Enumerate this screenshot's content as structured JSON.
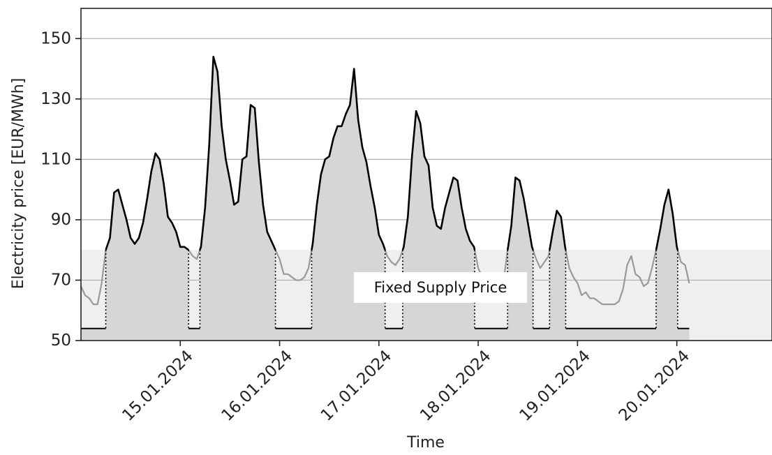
{
  "chart_data": {
    "type": "area",
    "title": "",
    "xlabel": "Time",
    "ylabel": "Electricity price [EUR/MWh]",
    "ylim": [
      50,
      160
    ],
    "yticks": [
      50,
      70,
      90,
      110,
      130,
      150
    ],
    "ytick_labels": [
      "50",
      "70",
      "90",
      "110",
      "130",
      "150"
    ],
    "xlim": [
      "2024-01-14 00:00",
      "2024-01-20 23:00"
    ],
    "xticks": [
      "2024-01-15",
      "2024-01-16",
      "2024-01-17",
      "2024-01-18",
      "2024-01-19",
      "2024-01-20"
    ],
    "xtick_labels": [
      "15.01.2024",
      "16.01.2024",
      "17.01.2024",
      "18.01.2024",
      "19.01.2024",
      "20.01.2024"
    ],
    "grid": "horizontal",
    "fixed_supply_price": 80,
    "baseline_price": 54,
    "annotation": "Fixed Supply Price",
    "colors": {
      "price_above_line": "#000000",
      "price_below_line": "#999999",
      "fill_above": "#d6d6d6",
      "fixed_band": "#efefef",
      "grid": "#b0b0b0"
    },
    "start": "2024-01-14 00:00",
    "step_hours": 1,
    "values": [
      68,
      65,
      64,
      62,
      62,
      69,
      80,
      84,
      99,
      100,
      95,
      90,
      84,
      82,
      84,
      89,
      97,
      106,
      112,
      110,
      102,
      91,
      89,
      86,
      81,
      81,
      80,
      78,
      77,
      81,
      94,
      115,
      144,
      139,
      121,
      110,
      103,
      95,
      96,
      110,
      111,
      128,
      127,
      109,
      95,
      86,
      83,
      80,
      77,
      72,
      72,
      71,
      70,
      70,
      71,
      74,
      82,
      95,
      105,
      110,
      111,
      117,
      121,
      121,
      125,
      128,
      140,
      123,
      114,
      109,
      101,
      94,
      85,
      82,
      78,
      76,
      75,
      77,
      81,
      91,
      111,
      126,
      122,
      111,
      108,
      94,
      88,
      87,
      94,
      99,
      104,
      103,
      94,
      87,
      83,
      81,
      74,
      71,
      67,
      65,
      63,
      64,
      68,
      79,
      88,
      104,
      103,
      97,
      89,
      81,
      77,
      74,
      76,
      78,
      86,
      93,
      91,
      81,
      74,
      71,
      69,
      65,
      66,
      64,
      64,
      63,
      62,
      62,
      62,
      62,
      63,
      67,
      75,
      78,
      72,
      71,
      68,
      69,
      74,
      80,
      87,
      95,
      100,
      92,
      81,
      76,
      75,
      69
    ]
  }
}
